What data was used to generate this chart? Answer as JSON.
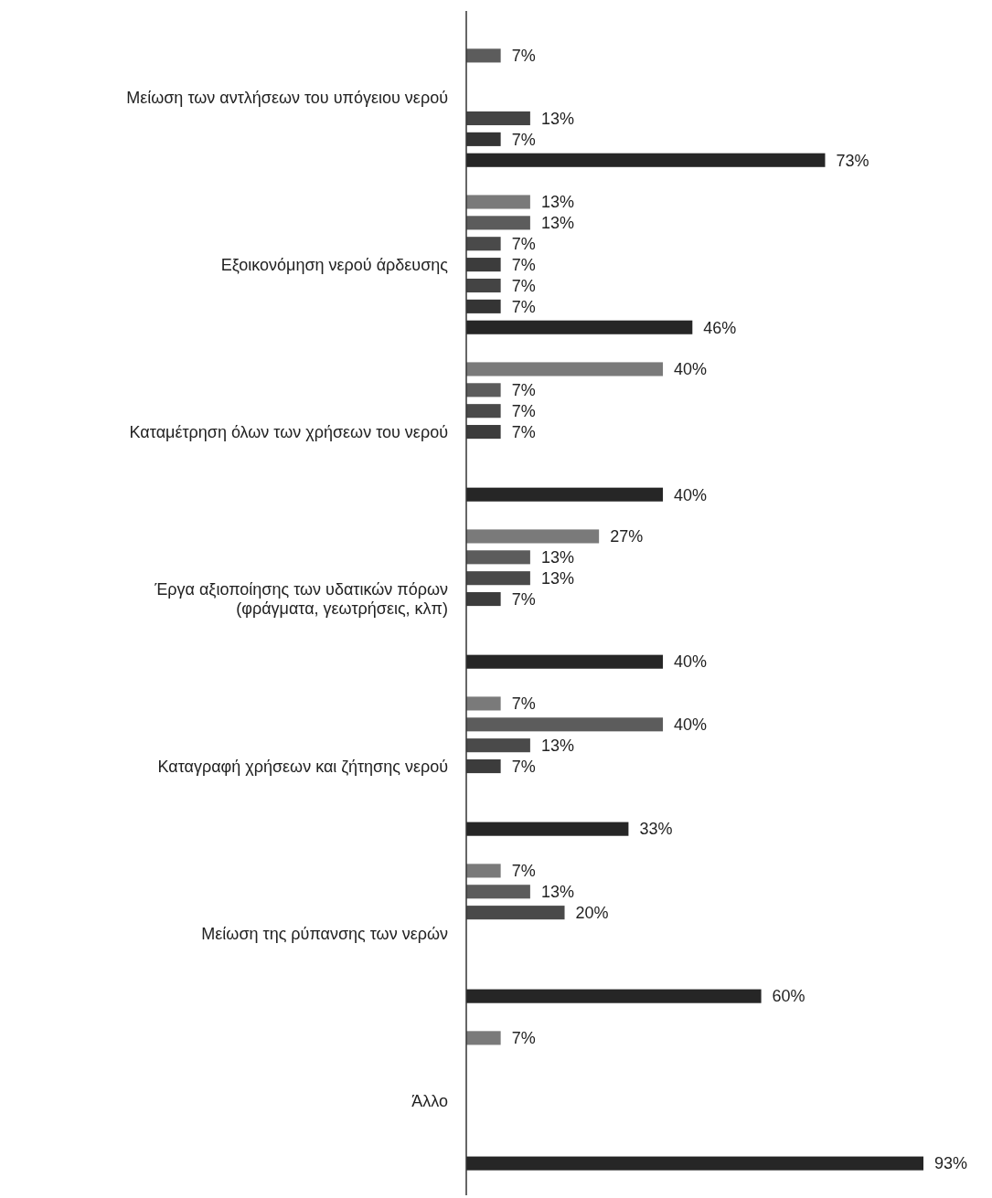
{
  "chart_data": {
    "type": "bar",
    "orientation": "horizontal",
    "categories": [
      "Μείωση των αντλήσεων του υπόγειου νερού",
      "Εξοικονόμηση νερού άρδευσης",
      "Καταμέτρηση όλων των χρήσεων του νερού",
      "Έργα αξιοποίησης των υδατικών πόρων (φράγματα, γεωτρήσεις, κλπ)",
      "Καταγραφή χρήσεων και ζήτησης νερού",
      "Μείωση της ρύπανσης των νερών",
      "Άλλο"
    ],
    "series": [
      {
        "color": "#7a7a7a",
        "values": [
          null,
          13,
          40,
          27,
          7,
          7,
          7
        ],
        "value_labels": [
          null,
          "13%",
          "40%",
          "27%",
          "7%",
          "7%",
          "7%"
        ]
      },
      {
        "color": "#5c5c5c",
        "values": [
          7,
          13,
          7,
          13,
          40,
          13,
          null
        ],
        "value_labels": [
          "7%",
          "13%",
          "7%",
          "13%",
          "40%",
          "13%",
          null
        ]
      },
      {
        "color": "#4a4a4a",
        "values": [
          null,
          7,
          7,
          13,
          13,
          20,
          null
        ],
        "value_labels": [
          null,
          "7%",
          "7%",
          "13%",
          "13%",
          "20%",
          null
        ]
      },
      {
        "color": "#3c3c3c",
        "values": [
          null,
          7,
          7,
          7,
          7,
          null,
          null
        ],
        "value_labels": [
          null,
          "7%",
          "7%",
          "7%",
          "7%",
          null,
          null
        ]
      },
      {
        "color": "#444444",
        "values": [
          13,
          7,
          null,
          null,
          null,
          null,
          null
        ],
        "value_labels": [
          "13%",
          "7%",
          null,
          null,
          null,
          null,
          null
        ]
      },
      {
        "color": "#343434",
        "values": [
          7,
          7,
          null,
          null,
          null,
          null,
          null
        ],
        "value_labels": [
          "7%",
          "7%",
          null,
          null,
          null,
          null,
          null
        ]
      },
      {
        "color": "#262626",
        "values": [
          73,
          46,
          40,
          40,
          33,
          60,
          93
        ],
        "value_labels": [
          "73%",
          "46%",
          "40%",
          "40%",
          "33%",
          "60%",
          "93%"
        ]
      }
    ]
  }
}
